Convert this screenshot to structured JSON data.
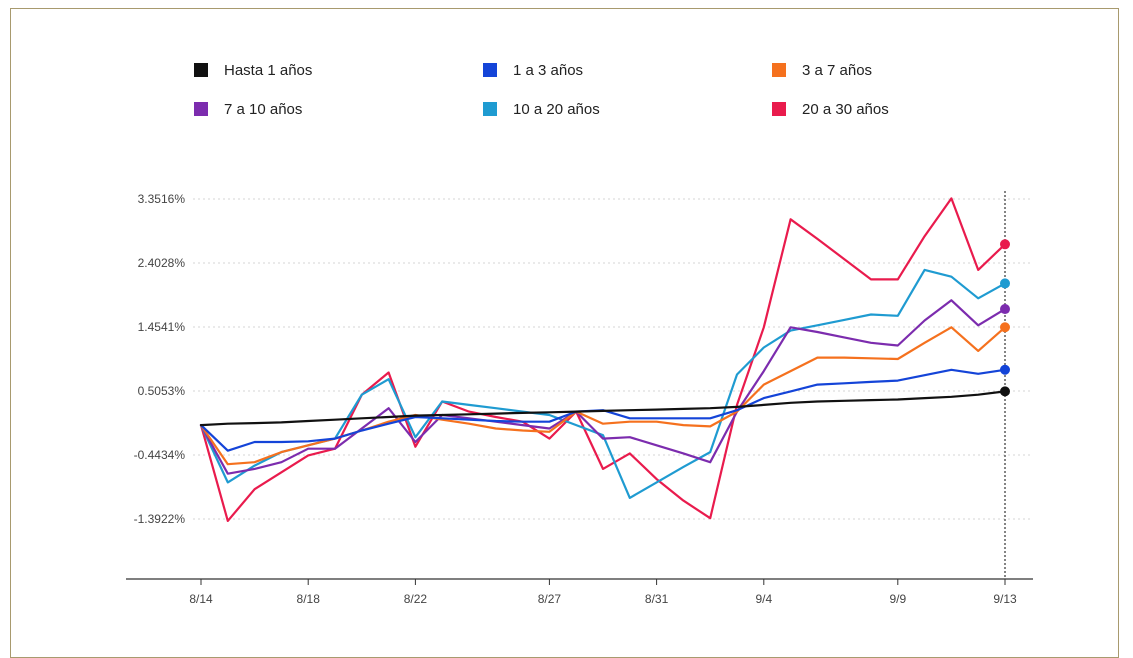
{
  "chart_data": {
    "type": "line",
    "x": [
      "8/14",
      "8/15",
      "8/16",
      "8/17",
      "8/18",
      "8/19",
      "8/20",
      "8/21",
      "8/22",
      "8/23",
      "8/24",
      "8/25",
      "8/26",
      "8/27",
      "8/28",
      "8/29",
      "8/30",
      "8/31",
      "9/1",
      "9/2",
      "9/3",
      "9/4",
      "9/5",
      "9/6",
      "9/7",
      "9/8",
      "9/9",
      "9/10",
      "9/11",
      "9/12",
      "9/13"
    ],
    "x_tick_labels": [
      "8/14",
      "8/18",
      "8/22",
      "8/27",
      "8/31",
      "9/4",
      "9/9",
      "9/13"
    ],
    "y_tick_values": [
      3.3516,
      2.4028,
      1.4541,
      0.5053,
      -0.4434,
      -1.3922
    ],
    "y_tick_labels": [
      "3.3516%",
      "2.4028%",
      "1.4541%",
      "0.5053%",
      "-0.4434%",
      "-1.3922%"
    ],
    "ylim": [
      -2.25,
      3.45
    ],
    "grid": true,
    "legend_position": "top",
    "series": [
      {
        "name": "Hasta 1 años",
        "color": "#111111",
        "values": [
          0.0,
          0.02,
          0.03,
          0.04,
          0.06,
          0.08,
          0.1,
          0.12,
          0.14,
          0.15,
          0.16,
          0.17,
          0.18,
          0.19,
          0.2,
          0.21,
          0.22,
          0.23,
          0.24,
          0.25,
          0.27,
          0.3,
          0.33,
          0.35,
          0.36,
          0.37,
          0.38,
          0.4,
          0.42,
          0.45,
          0.5
        ]
      },
      {
        "name": "1 a 3 años",
        "color": "#1444d8",
        "values": [
          0.0,
          -0.38,
          -0.25,
          -0.25,
          -0.24,
          -0.2,
          -0.08,
          0.02,
          0.12,
          0.1,
          0.08,
          0.06,
          0.05,
          0.05,
          0.2,
          0.22,
          0.1,
          0.1,
          0.1,
          0.1,
          0.22,
          0.4,
          0.5,
          0.6,
          0.62,
          0.64,
          0.66,
          0.74,
          0.82,
          0.76,
          0.82
        ]
      },
      {
        "name": "3 a 7 años",
        "color": "#f5711e",
        "values": [
          0.0,
          -0.58,
          -0.55,
          -0.4,
          -0.3,
          -0.2,
          -0.08,
          0.05,
          0.15,
          0.08,
          0.02,
          -0.05,
          -0.08,
          -0.1,
          0.2,
          0.02,
          0.05,
          0.05,
          0.0,
          -0.02,
          0.2,
          0.6,
          0.8,
          1.0,
          1.0,
          0.99,
          0.98,
          1.22,
          1.45,
          1.1,
          1.45
        ]
      },
      {
        "name": "7 a 10 años",
        "color": "#7c2cae",
        "values": [
          0.0,
          -0.72,
          -0.65,
          -0.55,
          -0.35,
          -0.35,
          -0.05,
          0.25,
          -0.25,
          0.15,
          0.1,
          0.05,
          0.0,
          -0.05,
          0.2,
          -0.2,
          -0.18,
          -0.3,
          -0.42,
          -0.55,
          0.2,
          0.8,
          1.45,
          1.38,
          1.3,
          1.22,
          1.18,
          1.55,
          1.85,
          1.48,
          1.72
        ]
      },
      {
        "name": "10 a 20 años",
        "color": "#1f9bd1",
        "values": [
          0.0,
          -0.85,
          -0.6,
          -0.4,
          -0.3,
          -0.2,
          0.45,
          0.68,
          -0.18,
          0.35,
          0.3,
          0.25,
          0.2,
          0.15,
          0.0,
          -0.15,
          -1.08,
          -0.85,
          -0.62,
          -0.4,
          0.75,
          1.15,
          1.4,
          1.48,
          1.56,
          1.64,
          1.62,
          2.3,
          2.2,
          1.88,
          2.1
        ]
      },
      {
        "name": "20 a 30 años",
        "color": "#e91b4d",
        "values": [
          0.0,
          -1.42,
          -0.95,
          -0.7,
          -0.45,
          -0.35,
          0.45,
          0.78,
          -0.32,
          0.35,
          0.2,
          0.12,
          0.05,
          -0.2,
          0.2,
          -0.65,
          -0.42,
          -0.8,
          -1.12,
          -1.38,
          0.3,
          1.45,
          3.05,
          2.76,
          2.46,
          2.16,
          2.16,
          2.8,
          3.36,
          2.3,
          2.68
        ]
      }
    ]
  }
}
